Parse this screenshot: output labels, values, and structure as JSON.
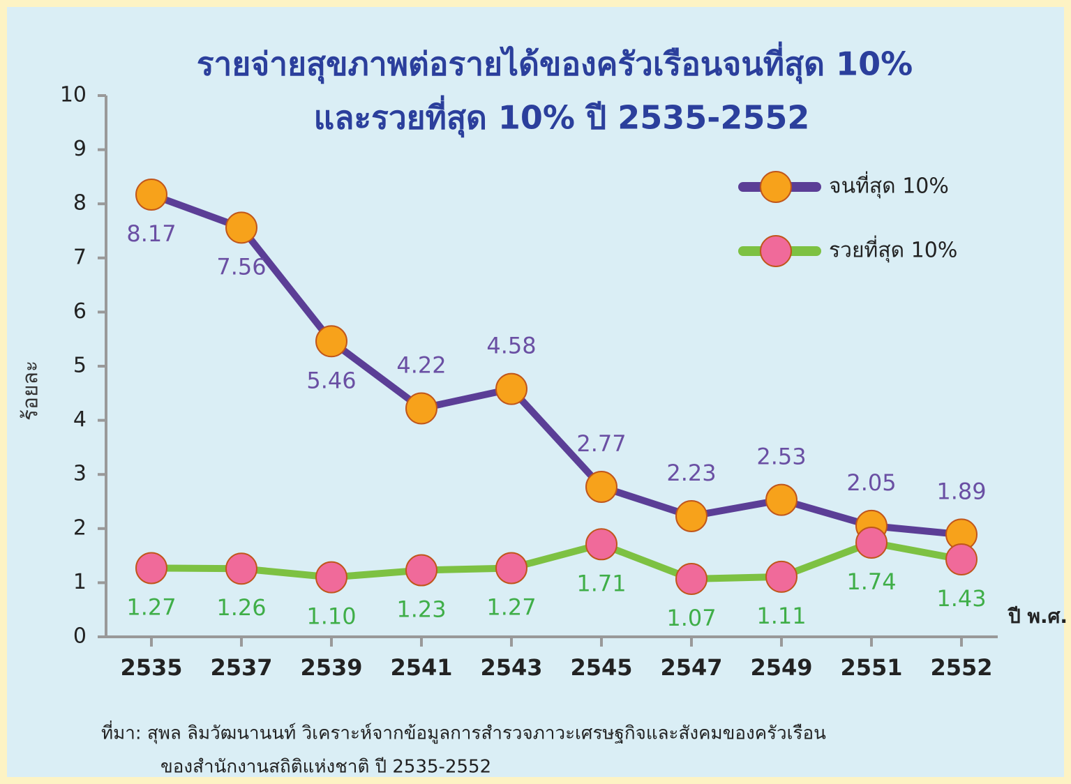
{
  "chart_data": {
    "type": "line",
    "title": [
      "รายจ่ายสุขภาพต่อรายได้ของครัวเรือนจนที่สุด 10%",
      "และรวยที่สุด 10% ปี 2535-2552"
    ],
    "y_label": "ร้อยละ",
    "x_label": "ปี พ.ศ.",
    "categories": [
      "2535",
      "2537",
      "2539",
      "2541",
      "2543",
      "2545",
      "2547",
      "2549",
      "2551",
      "2552"
    ],
    "series": [
      {
        "name": "จนที่สุด 10%",
        "color": "#5b3e96",
        "values": [
          8.17,
          7.56,
          5.46,
          4.22,
          4.58,
          2.77,
          2.23,
          2.53,
          2.05,
          1.89
        ],
        "value_labels": [
          "8.17",
          "7.56",
          "5.46",
          "4.22",
          "4.58",
          "2.77",
          "2.23",
          "2.53",
          "2.05",
          "1.89"
        ]
      },
      {
        "name": "รวยที่สุด 10%",
        "color": "#7dc142",
        "values": [
          1.27,
          1.26,
          1.1,
          1.23,
          1.27,
          1.71,
          1.07,
          1.11,
          1.74,
          1.43
        ],
        "value_labels": [
          "1.27",
          "1.26",
          "1.10",
          "1.23",
          "1.27",
          "1.71",
          "1.07",
          "1.11",
          "1.74",
          "1.43"
        ]
      }
    ],
    "ylim": [
      0,
      10
    ],
    "yticks": [
      0,
      1,
      2,
      3,
      4,
      5,
      6,
      7,
      8,
      9,
      10
    ],
    "grid": false,
    "legend": "top-right",
    "source": [
      "ที่มา: สุพล ลิมวัฒนานนท์ วิเคราะห์จากข้อมูลการสำรวจภาวะเศรษฐกิจและสังคมของครัวเรือน",
      "ของสำนักงานสถิติแห่งชาติ ปี 2535-2552"
    ]
  }
}
